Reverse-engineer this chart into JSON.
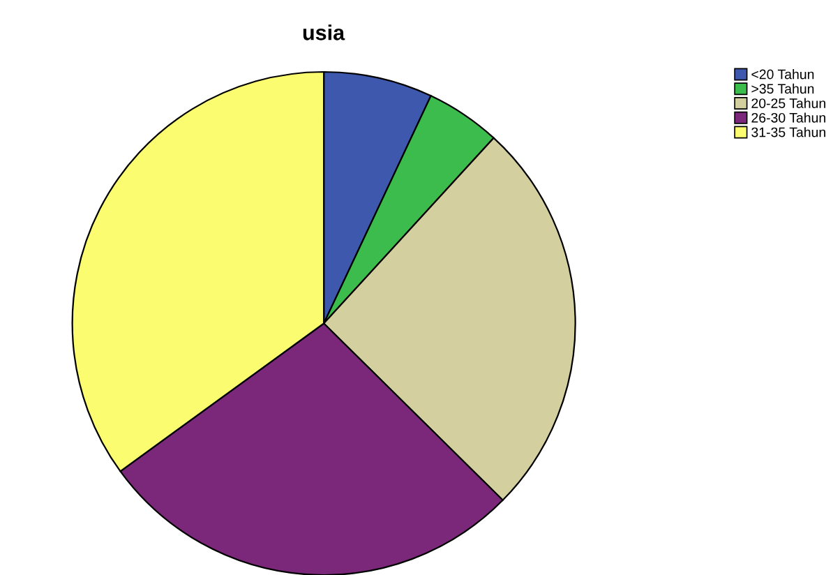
{
  "chart_data": {
    "type": "pie",
    "title": "usia",
    "categories": [
      "<20 Tahun",
      ">35 Tahun",
      "20-25 Tahun",
      "26-30 Tahun",
      "31-35 Tahun"
    ],
    "values": [
      7,
      4.8,
      25.6,
      27.6,
      35
    ],
    "colors": [
      "#3d58ad",
      "#3cbc4c",
      "#d4cf9e",
      "#7b287b",
      "#fcfc70"
    ],
    "legend": "top right"
  }
}
